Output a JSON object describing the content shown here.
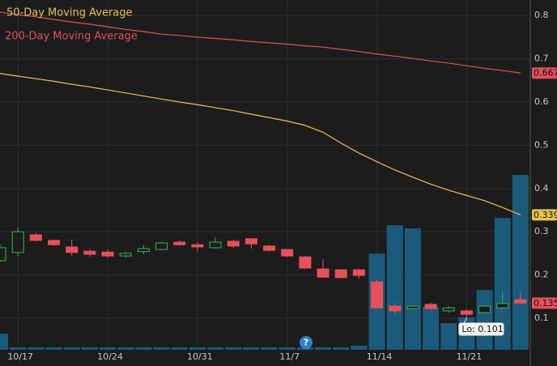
{
  "chart_data": {
    "type": "candlestick",
    "categories": [
      null,
      "10/17",
      null,
      null,
      null,
      null,
      "10/24",
      null,
      null,
      null,
      null,
      "10/31",
      null,
      null,
      null,
      null,
      "11/7",
      null,
      null,
      null,
      null,
      "11/14",
      null,
      null,
      null,
      null,
      "11/21",
      null,
      null,
      null
    ],
    "candles": {
      "open": [
        0.233,
        0.252,
        0.293,
        0.28,
        0.265,
        0.255,
        0.253,
        0.244,
        0.254,
        0.259,
        0.276,
        0.27,
        0.263,
        0.278,
        0.284,
        0.267,
        0.259,
        0.242,
        0.214,
        0.212,
        0.212,
        0.184,
        0.128,
        0.122,
        0.132,
        0.117,
        0.117,
        0.113,
        0.124,
        0.143
      ],
      "high": [
        0.27,
        0.31,
        0.297,
        0.282,
        0.282,
        0.261,
        0.259,
        0.254,
        0.269,
        0.276,
        0.28,
        0.276,
        0.287,
        0.282,
        0.285,
        0.27,
        0.259,
        0.244,
        0.237,
        0.214,
        0.214,
        0.19,
        0.136,
        0.13,
        0.136,
        0.128,
        0.121,
        0.13,
        0.162,
        0.16
      ],
      "low": [
        0.23,
        0.244,
        0.278,
        0.267,
        0.244,
        0.242,
        0.24,
        0.24,
        0.248,
        0.257,
        0.268,
        0.255,
        0.261,
        0.263,
        0.261,
        0.254,
        0.242,
        0.214,
        0.194,
        0.192,
        0.192,
        0.122,
        0.111,
        0.121,
        0.121,
        0.113,
        0.101,
        0.111,
        0.121,
        0.132
      ],
      "close": [
        0.263,
        0.3,
        0.28,
        0.27,
        0.252,
        0.248,
        0.244,
        0.25,
        0.261,
        0.274,
        0.27,
        0.265,
        0.276,
        0.267,
        0.272,
        0.257,
        0.244,
        0.216,
        0.195,
        0.194,
        0.199,
        0.124,
        0.117,
        0.128,
        0.122,
        0.124,
        0.109,
        0.128,
        0.134,
        0.135
      ],
      "up_color": "#3fae5a",
      "down_color": "#e8505b"
    },
    "series": [
      {
        "name": "50-Day Moving Average",
        "color": "#e6c24f",
        "values": [
          0.666,
          0.66,
          0.654,
          0.648,
          0.641,
          0.635,
          0.628,
          0.621,
          0.614,
          0.607,
          0.6,
          0.594,
          0.587,
          0.58,
          0.572,
          0.564,
          0.556,
          0.546,
          0.53,
          0.505,
          0.482,
          0.462,
          0.443,
          0.426,
          0.41,
          0.396,
          0.384,
          0.372,
          0.356,
          0.339
        ]
      },
      {
        "name": "200-Day Moving Average",
        "color": "#e0505a",
        "values": [
          0.808,
          0.802,
          0.797,
          0.791,
          0.785,
          0.78,
          0.774,
          0.768,
          0.763,
          0.757,
          0.754,
          0.75,
          0.747,
          0.744,
          0.74,
          0.737,
          0.734,
          0.73,
          0.727,
          0.722,
          0.717,
          0.711,
          0.706,
          0.701,
          0.695,
          0.69,
          0.684,
          0.678,
          0.673,
          0.667
        ]
      },
      {
        "name": "Volume",
        "type": "bar",
        "axis": "y2",
        "color": "#1a5a7a",
        "values": [
          4.6,
          0.7,
          0.7,
          0.7,
          0.7,
          0.7,
          0.7,
          0.7,
          0.7,
          0.7,
          0.7,
          0.7,
          0.7,
          0.7,
          0.7,
          0.7,
          0.7,
          0.7,
          0.7,
          0.7,
          1.2,
          27.5,
          35.6,
          34.7,
          12.3,
          7.6,
          9.3,
          17.1,
          37.7,
          50.0
        ]
      }
    ],
    "ylim": [
      0.027,
      0.836
    ],
    "yticks": [
      0.1,
      0.2,
      0.3,
      0.4,
      0.5,
      0.6,
      0.7,
      0.8
    ],
    "y2lim": [
      0,
      100
    ],
    "grid": true,
    "annotations": [
      {
        "text": "Lo: 0.101",
        "index": 26
      }
    ],
    "event_icon": "?"
  }
}
